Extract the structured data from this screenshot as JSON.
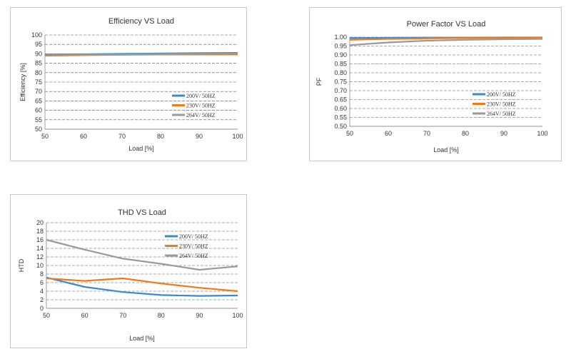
{
  "colors": {
    "series_200": "#3a8ad0",
    "series_230": "#f07a1a",
    "series_264": "#9a9a9a",
    "grid": "#555555",
    "axis": "#888888"
  },
  "chart_data": [
    {
      "type": "line",
      "title": "Efficiency VS Load",
      "xlabel": "Load [%]",
      "ylabel": "Efficiency [%]",
      "xlim": [
        50,
        100
      ],
      "ylim": [
        50,
        100
      ],
      "x_ticks": [
        "50",
        "60",
        "70",
        "80",
        "90",
        "100"
      ],
      "y_ticks": [
        "50",
        "55",
        "60",
        "65",
        "70",
        "75",
        "80",
        "85",
        "90",
        "95",
        "100"
      ],
      "x": [
        50,
        60,
        70,
        80,
        90,
        100
      ],
      "grid": true,
      "legend_position": "bottom-right",
      "series": [
        {
          "name": "200V/ 50HZ",
          "color": "#3a8ad0",
          "values": [
            89.6,
            89.8,
            90.0,
            90.2,
            90.4,
            90.5
          ]
        },
        {
          "name": "230V/ 50HZ",
          "color": "#f07a1a",
          "values": [
            89.0,
            89.3,
            89.5,
            89.6,
            89.6,
            89.6
          ]
        },
        {
          "name": "264V/ 50HZ",
          "color": "#9a9a9a",
          "values": [
            89.2,
            89.5,
            89.7,
            89.9,
            90.0,
            90.1
          ]
        }
      ]
    },
    {
      "type": "line",
      "title": "Power Factor VS Load",
      "xlabel": "Load [%]",
      "ylabel": "PF",
      "xlim": [
        50,
        100
      ],
      "ylim": [
        0.5,
        1.0
      ],
      "x_ticks": [
        "50",
        "60",
        "70",
        "80",
        "90",
        "100"
      ],
      "y_ticks": [
        "0.50",
        "0.55",
        "0.60",
        "0.65",
        "0.70",
        "0.75",
        "0.80",
        "0.85",
        "0.90",
        "0.95",
        "1.00"
      ],
      "x": [
        50,
        60,
        70,
        80,
        90,
        100
      ],
      "grid": true,
      "legend_position": "bottom-right",
      "series": [
        {
          "name": "200V/ 50HZ",
          "color": "#3a8ad0",
          "values": [
            0.995,
            0.996,
            0.997,
            0.997,
            0.998,
            0.998
          ]
        },
        {
          "name": "230V/ 50HZ",
          "color": "#f07a1a",
          "values": [
            0.985,
            0.99,
            0.993,
            0.995,
            0.996,
            0.997
          ]
        },
        {
          "name": "264V/ 50HZ",
          "color": "#9a9a9a",
          "values": [
            0.955,
            0.97,
            0.98,
            0.985,
            0.988,
            0.99
          ]
        }
      ]
    },
    {
      "type": "line",
      "title": "THD VS Load",
      "xlabel": "Load [%]",
      "ylabel": "HTD",
      "xlim": [
        50,
        100
      ],
      "ylim": [
        0,
        20
      ],
      "x_ticks": [
        "50",
        "60",
        "70",
        "80",
        "90",
        "100"
      ],
      "y_ticks": [
        "0",
        "2",
        "4",
        "6",
        "8",
        "10",
        "12",
        "14",
        "16",
        "18",
        "20"
      ],
      "x": [
        50,
        60,
        70,
        80,
        90,
        100
      ],
      "grid": true,
      "legend_position": "top-right",
      "series": [
        {
          "name": "200V/ 50HZ",
          "color": "#3a8ad0",
          "values": [
            7.2,
            5.0,
            3.8,
            3.1,
            2.9,
            3.0
          ]
        },
        {
          "name": "230V/ 50HZ",
          "color": "#f07a1a",
          "values": [
            7.0,
            6.4,
            7.0,
            5.8,
            4.8,
            4.0
          ]
        },
        {
          "name": "264V/ 50HZ",
          "color": "#9a9a9a",
          "values": [
            16.0,
            13.7,
            11.6,
            10.4,
            9.0,
            9.8
          ]
        }
      ]
    }
  ]
}
